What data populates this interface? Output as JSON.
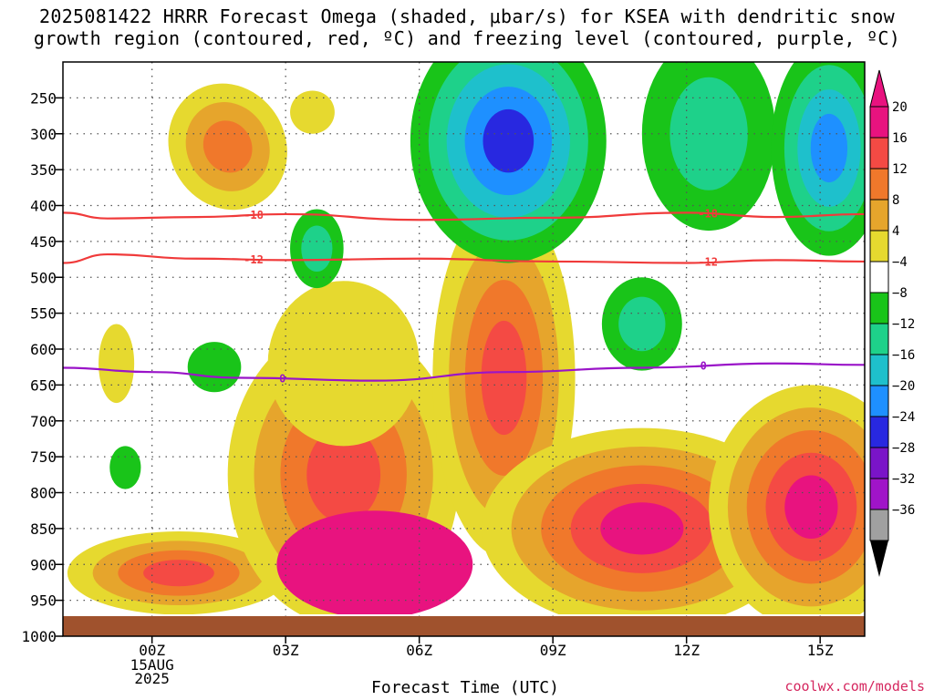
{
  "title": "2025081422 HRRR Forecast Omega (shaded, μbar/s) for KSEA with dendritic snow\ngrowth region (contoured, red, ºC) and freezing level (contoured, purple, ºC)",
  "credit": "coolwx.com/models",
  "chart_data": {
    "type": "heatmap",
    "title": "2025081422 HRRR Forecast Omega (shaded, μbar/s) for KSEA with dendritic snow growth region (contoured, red, ºC) and freezing level (contoured, purple, ºC)",
    "xlabel": "Forecast Time (UTC)",
    "ylabel": "",
    "x_range_hours": [
      -2,
      16
    ],
    "x_ticks": [
      {
        "hour": 0,
        "label": "00Z",
        "sub": [
          "15AUG",
          "2025"
        ]
      },
      {
        "hour": 3,
        "label": "03Z"
      },
      {
        "hour": 6,
        "label": "06Z"
      },
      {
        "hour": 9,
        "label": "09Z"
      },
      {
        "hour": 12,
        "label": "12Z"
      },
      {
        "hour": 15,
        "label": "15Z"
      }
    ],
    "y_ticks": [
      250,
      300,
      350,
      400,
      450,
      500,
      550,
      600,
      650,
      700,
      750,
      800,
      850,
      900,
      950,
      1000
    ],
    "y_range_hpa": [
      200,
      1000
    ],
    "colorbar": {
      "labels": [
        "20",
        "16",
        "12",
        "8",
        "4",
        "−4",
        "−8",
        "−12",
        "−16",
        "−20",
        "−24",
        "−28",
        "−32",
        "−36"
      ],
      "colors": [
        "#e8137f",
        "#f44a44",
        "#f0782b",
        "#e6a52c",
        "#e6d92f",
        "#ffffff",
        "#19c419",
        "#1ed18a",
        "#1ec0cc",
        "#1e90ff",
        "#2828e0",
        "#7a14c8",
        "#a014c8",
        "#a0a0a0"
      ],
      "top_arrow": "#e8137f",
      "bottom_arrow": "#000000"
    },
    "contours": [
      {
        "name": "dendritic -18",
        "label": "-18",
        "color": "#f03a3a",
        "points": [
          [
            -2,
            410
          ],
          [
            -1,
            418
          ],
          [
            1,
            416
          ],
          [
            3,
            412
          ],
          [
            6,
            420
          ],
          [
            9,
            417
          ],
          [
            12,
            410
          ],
          [
            14,
            416
          ],
          [
            16,
            412
          ]
        ]
      },
      {
        "name": "dendritic -12",
        "label": "-12",
        "color": "#f03a3a",
        "points": [
          [
            -2,
            480
          ],
          [
            -1,
            468
          ],
          [
            1,
            474
          ],
          [
            3,
            476
          ],
          [
            6,
            474
          ],
          [
            9,
            478
          ],
          [
            12,
            480
          ],
          [
            14,
            476
          ],
          [
            16,
            478
          ]
        ]
      },
      {
        "name": "freezing level 0",
        "label": "0",
        "color": "#9a14c8",
        "points": [
          [
            -2,
            626
          ],
          [
            0,
            632
          ],
          [
            2,
            640
          ],
          [
            5,
            644
          ],
          [
            8,
            632
          ],
          [
            11,
            626
          ],
          [
            14,
            620
          ],
          [
            16,
            622
          ]
        ]
      }
    ],
    "omega_cells": [
      {
        "name": "sink-upper-a",
        "h": 1.7,
        "p": 318,
        "rx": 1.3,
        "ry": 90,
        "rot": -28,
        "v": [
          4,
          8,
          12
        ]
      },
      {
        "name": "sink-upper-b",
        "h": 3.6,
        "p": 270,
        "rx": 0.5,
        "ry": 30,
        "rot": 0,
        "v": [
          4
        ]
      },
      {
        "name": "sink-low-1",
        "h": 0.6,
        "p": 912,
        "rx": 2.5,
        "ry": 58,
        "rot": 0,
        "v": [
          4,
          8,
          12,
          16
        ]
      },
      {
        "name": "sink-low-2",
        "h": 4.3,
        "p": 775,
        "rx": 2.6,
        "ry": 210,
        "rot": 0,
        "v": [
          4,
          8,
          12,
          16
        ]
      },
      {
        "name": "sink-low-2b",
        "h": 5.0,
        "p": 900,
        "rx": 2.2,
        "ry": 75,
        "rot": 0,
        "v": [
          20
        ]
      },
      {
        "name": "sink-low-2c",
        "h": 4.3,
        "p": 620,
        "rx": 1.7,
        "ry": 115,
        "rot": 0,
        "v": [
          4
        ]
      },
      {
        "name": "sink-low-3",
        "h": 7.9,
        "p": 640,
        "rx": 1.6,
        "ry": 250,
        "rot": 0,
        "v": [
          4,
          8,
          12,
          16
        ]
      },
      {
        "name": "sink-low-4",
        "h": 11.0,
        "p": 850,
        "rx": 3.6,
        "ry": 140,
        "rot": 0,
        "v": [
          4,
          8,
          12,
          16,
          20
        ]
      },
      {
        "name": "sink-low-5",
        "h": 14.8,
        "p": 820,
        "rx": 2.3,
        "ry": 170,
        "rot": 0,
        "v": [
          4,
          8,
          12,
          16,
          20
        ]
      },
      {
        "name": "sink-small",
        "h": -0.8,
        "p": 620,
        "rx": 0.4,
        "ry": 55,
        "rot": 0,
        "v": [
          4
        ]
      },
      {
        "name": "rise-1",
        "h": 8.0,
        "p": 310,
        "rx": 2.2,
        "ry": 170,
        "rot": 0,
        "v": [
          -4,
          -8,
          -12,
          -16,
          -20
        ]
      },
      {
        "name": "rise-2",
        "h": 12.5,
        "p": 300,
        "rx": 1.5,
        "ry": 135,
        "rot": 0,
        "v": [
          -4,
          -8
        ]
      },
      {
        "name": "rise-3",
        "h": 15.2,
        "p": 320,
        "rx": 1.3,
        "ry": 150,
        "rot": 0,
        "v": [
          -4,
          -8,
          -12,
          -16
        ]
      },
      {
        "name": "rise-4",
        "h": 3.7,
        "p": 460,
        "rx": 0.6,
        "ry": 55,
        "rot": 0,
        "v": [
          -4,
          -8
        ]
      },
      {
        "name": "rise-5",
        "h": 11.0,
        "p": 565,
        "rx": 0.9,
        "ry": 65,
        "rot": 0,
        "v": [
          -4,
          -8
        ]
      },
      {
        "name": "rise-6",
        "h": 1.4,
        "p": 625,
        "rx": 0.6,
        "ry": 35,
        "rot": 0,
        "v": [
          -4
        ]
      },
      {
        "name": "rise-7",
        "h": -0.6,
        "p": 765,
        "rx": 0.35,
        "ry": 30,
        "rot": 0,
        "v": [
          -4
        ]
      }
    ]
  }
}
